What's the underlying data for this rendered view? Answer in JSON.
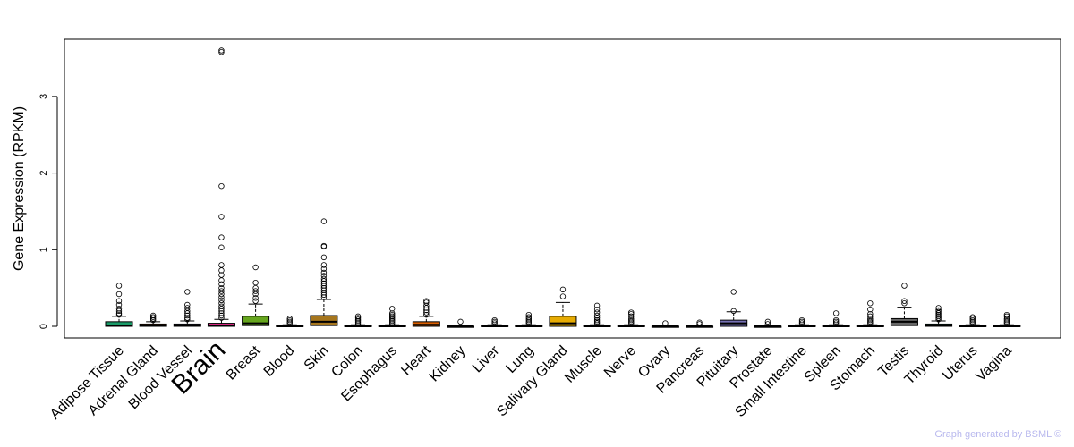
{
  "chart_data": {
    "type": "boxplot",
    "ylabel": "Gene Expression (RPKM)",
    "ylim": [
      -0.15,
      3.75
    ],
    "yticks": [
      "0",
      "1",
      "2",
      "3"
    ],
    "highlight_color": "#ff0000",
    "highlighted_category": "Brain",
    "categories": [
      {
        "name": "Adipose Tissue",
        "color": "#1a9a68",
        "q1": 0.0,
        "median": 0.01,
        "q3": 0.06,
        "whisker_high": 0.13,
        "outliers": [
          0.15,
          0.17,
          0.2,
          0.23,
          0.28,
          0.33,
          0.42,
          0.53
        ]
      },
      {
        "name": "Adrenal Gland",
        "color": "#d95f02",
        "q1": 0.0,
        "median": 0.01,
        "q3": 0.03,
        "whisker_high": 0.06,
        "outliers": [
          0.08,
          0.1,
          0.12,
          0.14
        ]
      },
      {
        "name": "Blood Vessel",
        "color": "#7570b3",
        "q1": 0.0,
        "median": 0.01,
        "q3": 0.03,
        "whisker_high": 0.07,
        "outliers": [
          0.09,
          0.11,
          0.14,
          0.17,
          0.2,
          0.24,
          0.28,
          0.45
        ]
      },
      {
        "name": "Brain",
        "color": "#e7298a",
        "q1": 0.0,
        "median": 0.01,
        "q3": 0.04,
        "whisker_high": 0.09,
        "outliers": [
          0.11,
          0.14,
          0.17,
          0.2,
          0.23,
          0.26,
          0.3,
          0.34,
          0.38,
          0.42,
          0.46,
          0.5,
          0.55,
          0.6,
          0.67,
          0.73,
          0.8,
          1.03,
          1.16,
          1.43,
          1.83,
          3.58,
          3.6
        ]
      },
      {
        "name": "Breast",
        "color": "#66a61e",
        "q1": 0.01,
        "median": 0.04,
        "q3": 0.13,
        "whisker_high": 0.29,
        "outliers": [
          0.33,
          0.37,
          0.42,
          0.46,
          0.5,
          0.57,
          0.77
        ]
      },
      {
        "name": "Blood",
        "color": "#e6ab02",
        "q1": 0.0,
        "median": 0.0,
        "q3": 0.01,
        "whisker_high": 0.02,
        "outliers": [
          0.04,
          0.06,
          0.08,
          0.1
        ]
      },
      {
        "name": "Skin",
        "color": "#a6761d",
        "q1": 0.01,
        "median": 0.06,
        "q3": 0.14,
        "whisker_high": 0.35,
        "outliers": [
          0.38,
          0.41,
          0.44,
          0.47,
          0.5,
          0.53,
          0.56,
          0.59,
          0.62,
          0.66,
          0.7,
          0.75,
          0.8,
          0.9,
          1.04,
          1.05,
          1.37
        ]
      },
      {
        "name": "Colon",
        "color": "#666666",
        "q1": 0.0,
        "median": 0.0,
        "q3": 0.01,
        "whisker_high": 0.02,
        "outliers": [
          0.03,
          0.05,
          0.07,
          0.09,
          0.11,
          0.13
        ]
      },
      {
        "name": "Esophagus",
        "color": "#1a9a68",
        "q1": 0.0,
        "median": 0.0,
        "q3": 0.01,
        "whisker_high": 0.02,
        "outliers": [
          0.03,
          0.05,
          0.07,
          0.09,
          0.11,
          0.13,
          0.15,
          0.17,
          0.23
        ]
      },
      {
        "name": "Heart",
        "color": "#d95f02",
        "q1": 0.0,
        "median": 0.02,
        "q3": 0.06,
        "whisker_high": 0.13,
        "outliers": [
          0.15,
          0.18,
          0.21,
          0.24,
          0.27,
          0.31,
          0.33
        ]
      },
      {
        "name": "Kidney",
        "color": "#7570b3",
        "q1": 0.0,
        "median": 0.0,
        "q3": 0.0,
        "whisker_high": 0.0,
        "outliers": [
          0.06
        ]
      },
      {
        "name": "Liver",
        "color": "#e7298a",
        "q1": 0.0,
        "median": 0.0,
        "q3": 0.01,
        "whisker_high": 0.02,
        "outliers": [
          0.04,
          0.06,
          0.08
        ]
      },
      {
        "name": "Lung",
        "color": "#66a61e",
        "q1": 0.0,
        "median": 0.0,
        "q3": 0.01,
        "whisker_high": 0.02,
        "outliers": [
          0.04,
          0.06,
          0.08,
          0.1,
          0.12,
          0.15
        ]
      },
      {
        "name": "Salivary Gland",
        "color": "#e6ab02",
        "q1": 0.0,
        "median": 0.04,
        "q3": 0.13,
        "whisker_high": 0.31,
        "outliers": [
          0.39,
          0.48
        ]
      },
      {
        "name": "Muscle",
        "color": "#a6761d",
        "q1": 0.0,
        "median": 0.0,
        "q3": 0.01,
        "whisker_high": 0.02,
        "outliers": [
          0.04,
          0.06,
          0.08,
          0.11,
          0.14,
          0.18,
          0.22,
          0.27
        ]
      },
      {
        "name": "Nerve",
        "color": "#666666",
        "q1": 0.0,
        "median": 0.0,
        "q3": 0.01,
        "whisker_high": 0.02,
        "outliers": [
          0.04,
          0.06,
          0.08,
          0.1,
          0.13,
          0.16,
          0.18
        ]
      },
      {
        "name": "Ovary",
        "color": "#1a9a68",
        "q1": 0.0,
        "median": 0.0,
        "q3": 0.0,
        "whisker_high": 0.0,
        "outliers": [
          0.04
        ]
      },
      {
        "name": "Pancreas",
        "color": "#d95f02",
        "q1": 0.0,
        "median": 0.0,
        "q3": 0.0,
        "whisker_high": 0.01,
        "outliers": [
          0.03,
          0.05
        ]
      },
      {
        "name": "Pituitary",
        "color": "#7570b3",
        "q1": 0.0,
        "median": 0.04,
        "q3": 0.08,
        "whisker_high": 0.19,
        "outliers": [
          0.2,
          0.45
        ]
      },
      {
        "name": "Prostate",
        "color": "#e7298a",
        "q1": 0.0,
        "median": 0.0,
        "q3": 0.0,
        "whisker_high": 0.01,
        "outliers": [
          0.03,
          0.06
        ]
      },
      {
        "name": "Small Intestine",
        "color": "#66a61e",
        "q1": 0.0,
        "median": 0.0,
        "q3": 0.01,
        "whisker_high": 0.02,
        "outliers": [
          0.04,
          0.06,
          0.08
        ]
      },
      {
        "name": "Spleen",
        "color": "#e6ab02",
        "q1": 0.0,
        "median": 0.0,
        "q3": 0.01,
        "whisker_high": 0.02,
        "outliers": [
          0.04,
          0.06,
          0.08,
          0.17
        ]
      },
      {
        "name": "Stomach",
        "color": "#a6761d",
        "q1": 0.0,
        "median": 0.0,
        "q3": 0.01,
        "whisker_high": 0.02,
        "outliers": [
          0.04,
          0.06,
          0.08,
          0.1,
          0.13,
          0.16,
          0.22,
          0.3
        ]
      },
      {
        "name": "Testis",
        "color": "#666666",
        "q1": 0.01,
        "median": 0.06,
        "q3": 0.1,
        "whisker_high": 0.25,
        "outliers": [
          0.3,
          0.33,
          0.53
        ]
      },
      {
        "name": "Thyroid",
        "color": "#1a9a68",
        "q1": 0.0,
        "median": 0.01,
        "q3": 0.03,
        "whisker_high": 0.07,
        "outliers": [
          0.09,
          0.11,
          0.13,
          0.15,
          0.17,
          0.19,
          0.21,
          0.24
        ]
      },
      {
        "name": "Uterus",
        "color": "#d95f02",
        "q1": 0.0,
        "median": 0.0,
        "q3": 0.01,
        "whisker_high": 0.02,
        "outliers": [
          0.04,
          0.06,
          0.08,
          0.1,
          0.12
        ]
      },
      {
        "name": "Vagina",
        "color": "#7570b3",
        "q1": 0.0,
        "median": 0.0,
        "q3": 0.01,
        "whisker_high": 0.02,
        "outliers": [
          0.04,
          0.06,
          0.08,
          0.1,
          0.13,
          0.15
        ]
      }
    ]
  },
  "credit": "Graph generated by BSML ©"
}
